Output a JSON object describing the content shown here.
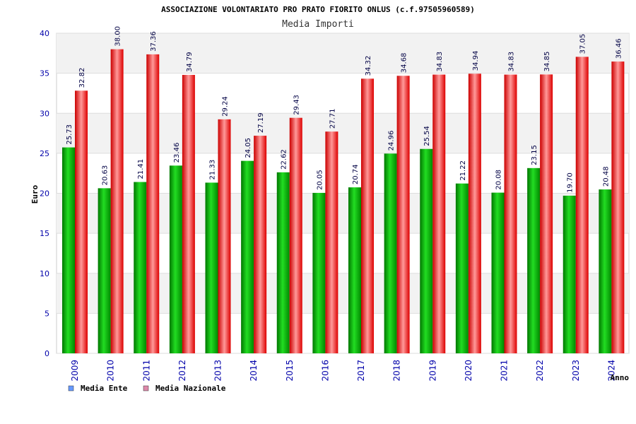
{
  "chart_data": {
    "type": "bar",
    "title": "ASSOCIAZIONE VOLONTARIATO PRO PRATO FIORITO ONLUS (c.f.97505960589)",
    "subtitle": "Media Importi",
    "xlabel": "Anno",
    "ylabel": "Euro",
    "ylim": [
      0,
      40
    ],
    "yticks": [
      0,
      5,
      10,
      15,
      20,
      25,
      30,
      35,
      40
    ],
    "grid": true,
    "legend_position": "bottom-left",
    "categories": [
      "2009",
      "2010",
      "2011",
      "2012",
      "2013",
      "2014",
      "2015",
      "2016",
      "2017",
      "2018",
      "2019",
      "2020",
      "2021",
      "2022",
      "2023",
      "2024"
    ],
    "series": [
      {
        "name": "Media Ente",
        "color": "#00aa00",
        "legend_color": "#6699ff",
        "values": [
          25.73,
          20.63,
          21.41,
          23.46,
          21.33,
          24.05,
          22.62,
          20.05,
          20.74,
          24.96,
          25.54,
          21.22,
          20.08,
          23.15,
          19.7,
          20.48
        ],
        "labels": [
          "25.73",
          "20.63",
          "21.41",
          "23.46",
          "21.33",
          "24.05",
          "22.62",
          "20.05",
          "20.74",
          "24.96",
          "25.54",
          "21.22",
          "20.08",
          "23.15",
          "19.70",
          "20.48"
        ]
      },
      {
        "name": "Media Nazionale",
        "color": "#dd0000",
        "legend_color": "#dd88aa",
        "values": [
          32.82,
          38.0,
          37.36,
          34.79,
          29.24,
          27.19,
          29.43,
          27.71,
          34.32,
          34.68,
          34.83,
          34.94,
          34.83,
          34.85,
          37.05,
          36.46
        ],
        "labels": [
          "32.82",
          "38.00",
          "37.36",
          "34.79",
          "29.24",
          "27.19",
          "29.43",
          "27.71",
          "34.32",
          "34.68",
          "34.83",
          "34.94",
          "34.83",
          "34.85",
          "37.05",
          "36.46"
        ]
      }
    ]
  }
}
